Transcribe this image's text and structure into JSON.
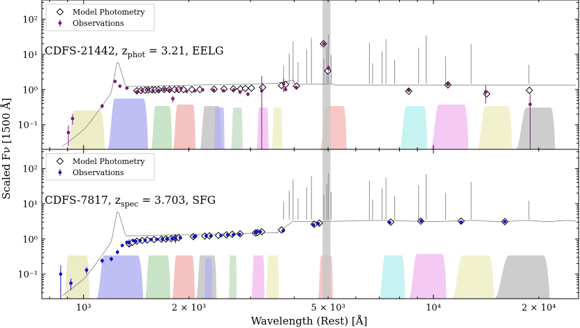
{
  "chart_data": {
    "type": "scatter",
    "x_axis": {
      "label": "Wavelength (Rest) [Å]",
      "scale": "log",
      "xlim": [
        760,
        26000
      ],
      "ticks": [
        {
          "value": 1000,
          "label": "10³"
        },
        {
          "value": 2000,
          "label": "2 × 10³"
        },
        {
          "value": 5000,
          "label": "5 × 10³"
        },
        {
          "value": 10000,
          "label": "10⁴"
        },
        {
          "value": 20000,
          "label": "2 × 10⁴"
        }
      ]
    },
    "y_axis": {
      "label": "Scaled Fν [1500 Å]",
      "scale": "log",
      "ylim": [
        0.02,
        350
      ],
      "ticks": [
        {
          "value": 0.1,
          "label": "10⁻¹"
        },
        {
          "value": 1,
          "label": "10⁰"
        },
        {
          "value": 10,
          "label": "10¹"
        },
        {
          "value": 100,
          "label": "10²"
        }
      ]
    },
    "shaded_band": [
      4820,
      5080
    ],
    "filter_colors": [
      "#e6e6b4",
      "#aaaaf2",
      "#b6d9b6",
      "#f2aeae",
      "#bcbcbc",
      "#b0b0f2",
      "#c0dcc0",
      "#f0b8f0",
      "#ececbe",
      "#f4b4b4",
      "#b4eeee",
      "#f0b8f0",
      "#ececbe",
      "#bcbcbc"
    ],
    "panels": [
      {
        "name": "CDFS-21442",
        "title": "CDFS-21442, z",
        "redshift_sub": "phot",
        "redshift_rest": " = 3.21, EELG",
        "obs_color": "#7a1a6e",
        "legend": [
          "Model Photometry",
          "Observations"
        ],
        "model_photometry": {
          "x": [
            1420,
            1460,
            1500,
            1530,
            1570,
            1600,
            1640,
            1700,
            1760,
            1820,
            1870,
            1930,
            2040,
            2150,
            2360,
            2520,
            2680,
            2810,
            2900,
            3020,
            3250,
            3680,
            3780,
            4060,
            4850,
            4990,
            8500,
            11000,
            14200,
            18800
          ],
          "y": [
            0.92,
            0.94,
            0.96,
            0.97,
            0.98,
            0.98,
            0.99,
            1.0,
            1.0,
            1.0,
            1.0,
            1.0,
            1.0,
            1.0,
            1.02,
            1.04,
            1.05,
            1.05,
            1.07,
            1.1,
            1.15,
            1.3,
            1.4,
            1.25,
            20,
            3.4,
            0.9,
            1.35,
            0.75,
            0.95
          ]
        },
        "observations": {
          "x": [
            905,
            930,
            1130,
            1230,
            1270,
            1330,
            1420,
            1470,
            1530,
            1580,
            1640,
            1700,
            1760,
            1800,
            1850,
            1900,
            1970,
            2080,
            2190,
            2350,
            2510,
            2690,
            2800,
            2950,
            3230,
            3730,
            3780,
            4050,
            4860,
            5010,
            8500,
            11000,
            14100,
            18900
          ],
          "y": [
            0.06,
            0.15,
            0.34,
            1.7,
            1.25,
            1.1,
            0.85,
            0.95,
            0.98,
            0.92,
            0.95,
            1.0,
            0.97,
            0.55,
            0.95,
            1.08,
            0.9,
            0.92,
            0.98,
            0.96,
            0.93,
            0.98,
            0.85,
            0.74,
            0.92,
            1.45,
            1.0,
            1.15,
            20,
            4.1,
            0.95,
            1.4,
            0.85,
            0.38
          ],
          "yerr": [
            0.035,
            0.05,
            0.05,
            0.15,
            0.1,
            0.08,
            0.1,
            0.06,
            0.06,
            0.06,
            0.06,
            0.06,
            0.06,
            0.12,
            0.08,
            0.06,
            0.12,
            0.06,
            0.06,
            0.06,
            0.06,
            0.06,
            0.1,
            0.1,
            1.5,
            0.6,
            0.05,
            0.1,
            0.3,
            0.8,
            0.1,
            0.2,
            0.45,
            0.37
          ]
        }
      },
      {
        "name": "CDFS-7817",
        "title": "CDFS-7817, z",
        "redshift_sub": "spec",
        "redshift_rest": " = 3.703, SFG",
        "obs_color": "#1010c8",
        "legend": [
          "Model Photometry",
          "Observations"
        ],
        "model_photometry": {
          "x": [
            1350,
            1380,
            1420,
            1470,
            1520,
            1590,
            1670,
            1720,
            1780,
            1830,
            1870,
            2060,
            2220,
            2290,
            2430,
            2560,
            2660,
            2800,
            3100,
            3140,
            3230,
            3680,
            4560,
            4720,
            7550,
            9200,
            12000,
            16000
          ],
          "y": [
            0.72,
            0.8,
            0.86,
            0.9,
            0.93,
            0.96,
            0.98,
            1.0,
            1.02,
            1.05,
            1.08,
            1.16,
            1.2,
            1.22,
            1.25,
            1.3,
            1.35,
            1.4,
            1.48,
            1.52,
            1.6,
            1.8,
            2.6,
            2.8,
            3.0,
            3.2,
            3.2,
            3.1
          ]
        },
        "observations": {
          "x": [
            860,
            920,
            1020,
            1130,
            1200,
            1250,
            1290,
            1330,
            1350,
            1390,
            1410,
            1450,
            1500,
            1560,
            1620,
            1680,
            1730,
            1790,
            1830,
            1890,
            2070,
            2090,
            2240,
            2310,
            2470,
            2580,
            2680,
            2790,
            3100,
            3130,
            3200,
            3720,
            4540,
            4690,
            7500,
            9220,
            12000,
            16000
          ],
          "y": [
            0.1,
            0.055,
            0.13,
            0.24,
            0.27,
            0.42,
            0.65,
            0.8,
            0.78,
            0.88,
            0.85,
            0.9,
            0.91,
            0.96,
            0.97,
            0.98,
            1.0,
            1.02,
            1.05,
            1.08,
            1.15,
            1.2,
            1.22,
            1.2,
            1.24,
            1.3,
            1.3,
            1.35,
            1.5,
            1.55,
            1.6,
            1.7,
            2.5,
            2.7,
            2.9,
            3.2,
            3.0,
            3.1
          ],
          "yerr": [
            0.08,
            0.02,
            0.03,
            0.04,
            0.04,
            0.06,
            0.06,
            0.06,
            0.2,
            0.06,
            0.06,
            0.06,
            0.06,
            0.06,
            0.06,
            0.06,
            0.06,
            0.06,
            0.3,
            0.06,
            0.06,
            0.06,
            0.06,
            0.06,
            0.06,
            0.06,
            0.06,
            0.06,
            0.06,
            0.06,
            0.06,
            0.06,
            0.3,
            0.3,
            0.3,
            0.3,
            0.3,
            0.3
          ]
        }
      }
    ]
  }
}
